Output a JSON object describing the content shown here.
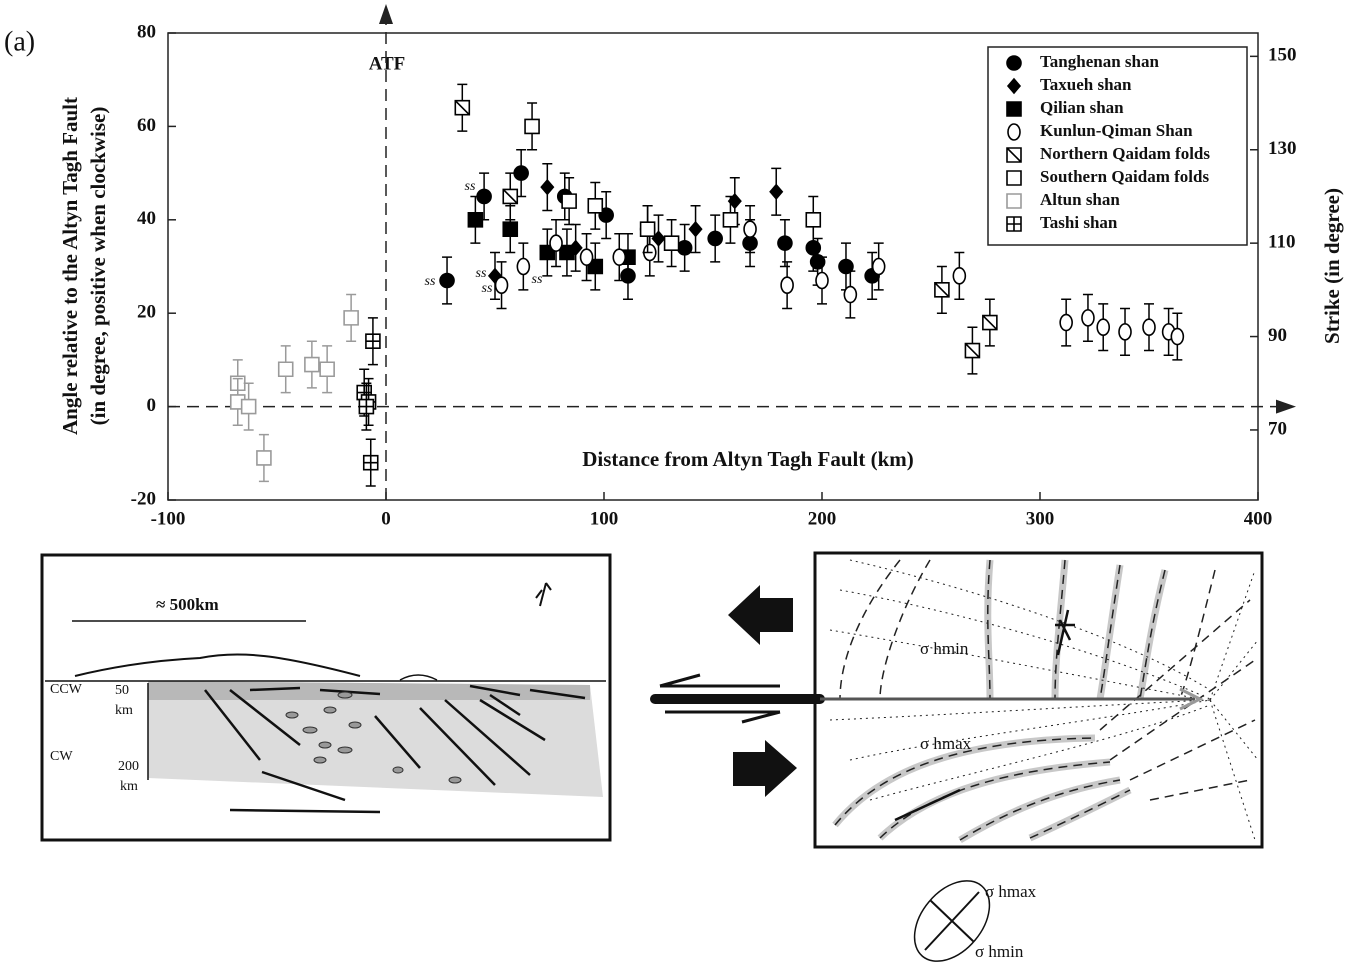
{
  "chart_data": {
    "type": "scatter",
    "panel_label": "(a)",
    "x_label": "Distance from Altyn Tagh Fault (km)",
    "y_label": [
      "Angle relative to the Altyn Tagh Fault",
      "(in degree, positive when clockwise)"
    ],
    "y2_label": "Strike (in degree)",
    "fault_label": "ATF",
    "xlim": [
      -100,
      400
    ],
    "xticks": [
      -100,
      0,
      100,
      200,
      300,
      400
    ],
    "ylim": [
      -20,
      80
    ],
    "yticks": [
      -20,
      0,
      20,
      40,
      60,
      80
    ],
    "y2lim": [
      55,
      155
    ],
    "y2ticks": [
      70,
      90,
      110,
      130,
      150
    ],
    "legend": "upper right",
    "annotations": [
      "ss",
      "ss",
      "ss",
      "ss",
      "ss"
    ],
    "series": [
      {
        "name": "Tanghenan shan",
        "color": "#000000",
        "marker": "circle",
        "error": 5,
        "x": [
          28,
          45,
          62,
          82,
          101,
          111,
          120,
          137,
          151,
          167,
          183,
          196,
          198,
          211,
          223
        ],
        "values": [
          27,
          45,
          50,
          45,
          41,
          28,
          38,
          34,
          36,
          35,
          35,
          34,
          31,
          30,
          28
        ]
      },
      {
        "name": "Taxueh shan",
        "color": "#000000",
        "marker": "diamond",
        "error": 5,
        "x": [
          50,
          74,
          87,
          125,
          142,
          160,
          179
        ],
        "values": [
          28,
          47,
          34,
          36,
          38,
          44,
          46
        ]
      },
      {
        "name": "Qilian shan",
        "color": "#000000",
        "marker": "square",
        "error": 5,
        "x": [
          41,
          57,
          74,
          83,
          96,
          111
        ],
        "values": [
          40,
          38,
          33,
          33,
          30,
          32
        ]
      },
      {
        "name": "Kunlun-Qiman Shan",
        "color": "#000000",
        "marker": "ellipse",
        "error": 5,
        "x": [
          53,
          63,
          78,
          92,
          107,
          121,
          167,
          184,
          200,
          213,
          226,
          263,
          312,
          322,
          329,
          339,
          350,
          359,
          363
        ],
        "values": [
          26,
          30,
          35,
          32,
          32,
          33,
          38,
          26,
          27,
          24,
          30,
          28,
          18,
          19,
          17,
          16,
          17,
          16,
          15
        ]
      },
      {
        "name": "Northern Qaidam folds",
        "color": "#000000",
        "marker": "square-diag",
        "error": 5,
        "x": [
          35,
          57,
          255,
          269,
          277
        ],
        "values": [
          64,
          45,
          25,
          12,
          18
        ]
      },
      {
        "name": "Southern Qaidam folds",
        "color": "#000000",
        "marker": "square-open",
        "error": 5,
        "x": [
          67,
          84,
          96,
          120,
          131,
          158,
          196
        ],
        "values": [
          60,
          44,
          43,
          38,
          35,
          40,
          40
        ]
      },
      {
        "name": "Altun shan",
        "color": "#9a9a9a",
        "marker": "square-open",
        "error": 5,
        "x": [
          -68,
          -68,
          -63,
          -56,
          -46,
          -34,
          -27,
          -16
        ],
        "values": [
          5,
          1,
          0,
          -11,
          8,
          9,
          8,
          19
        ]
      },
      {
        "name": "Tashi shan",
        "color": "#000000",
        "marker": "square-plus",
        "error": 5,
        "x": [
          -6,
          -10,
          -8,
          -9,
          -7
        ],
        "values": [
          14,
          3,
          1,
          0,
          -12
        ]
      }
    ]
  },
  "diagrams": {
    "cross_section": {
      "scale": "≈ 500km",
      "ccw": "CCW",
      "cw": "CW",
      "depth_top": "50",
      "depth_top_unit": "km",
      "depth_bottom": "200",
      "depth_bottom_unit": "km"
    },
    "stress_field": {
      "min_label": "σ hmin",
      "max_label": "σ hmax"
    },
    "stress_key": {
      "max_label": "σ hmax",
      "min_label": "σ hmin"
    }
  }
}
